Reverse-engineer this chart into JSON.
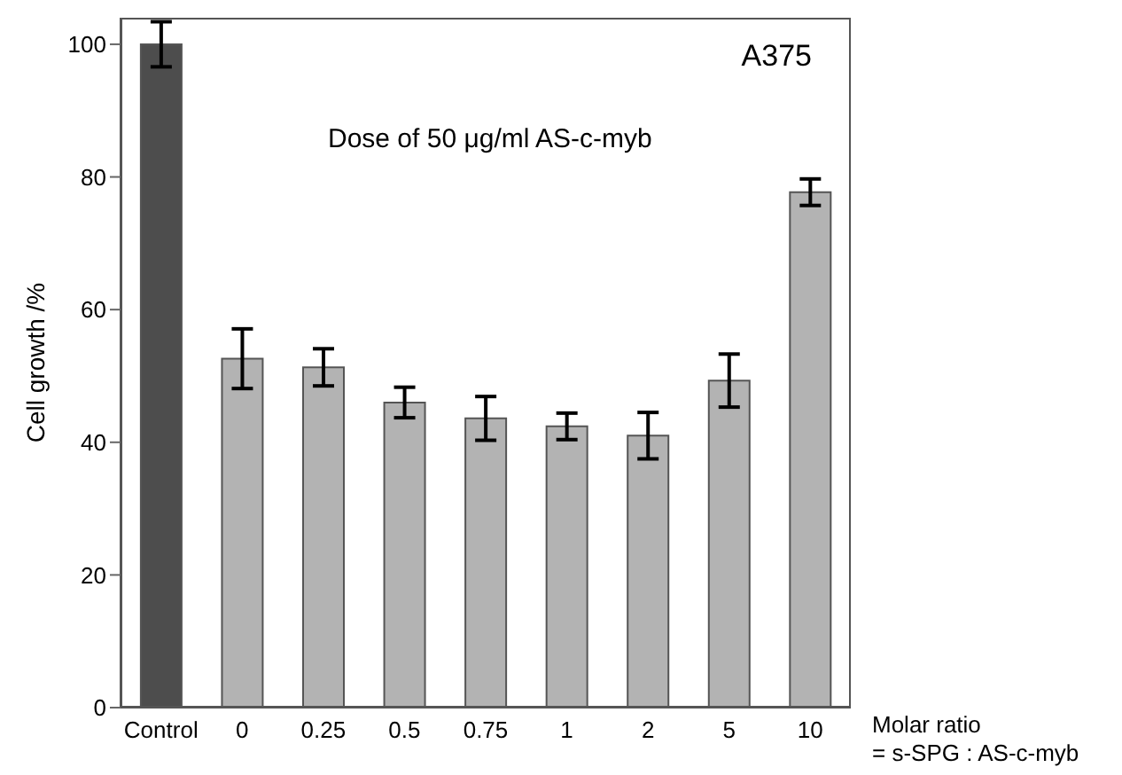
{
  "chart_data": {
    "type": "bar",
    "ylabel": "Cell growth /%",
    "xlabel": "Molar ratio\n= s-SPG : AS-c-myb",
    "annotations": [
      "A375",
      "Dose of 50 μg/ml AS-c-myb"
    ],
    "categories": [
      "Control",
      "0",
      "0.25",
      "0.5",
      "0.75",
      "1",
      "2",
      "5",
      "10"
    ],
    "values": [
      100,
      52.6,
      51.3,
      46,
      43.6,
      42.4,
      41,
      49.3,
      77.7
    ],
    "errors": [
      3.4,
      4.5,
      2.8,
      2.3,
      3.3,
      2,
      3.5,
      4,
      2
    ],
    "colors": [
      "#4d4d4d",
      "#b3b3b3",
      "#b3b3b3",
      "#b3b3b3",
      "#b3b3b3",
      "#b3b3b3",
      "#b3b3b3",
      "#b3b3b3",
      "#b3b3b3"
    ],
    "ylim": [
      0,
      104
    ],
    "yticks": [
      0,
      20,
      40,
      60,
      80,
      100
    ]
  }
}
